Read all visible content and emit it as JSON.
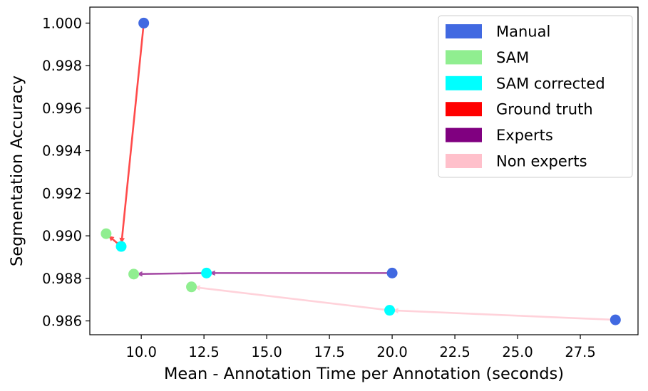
{
  "chart_data": {
    "type": "scatter",
    "xlabel": "Mean - Annotation Time per Annotation (seconds)",
    "ylabel": "Segmentation Accuracy",
    "xlim": [
      7.95,
      29.8
    ],
    "ylim": [
      0.98535,
      1.00075
    ],
    "xticks": [
      {
        "value": 10.0,
        "label": "10.0"
      },
      {
        "value": 12.5,
        "label": "12.5"
      },
      {
        "value": 15.0,
        "label": "15.0"
      },
      {
        "value": 17.5,
        "label": "17.5"
      },
      {
        "value": 20.0,
        "label": "20.0"
      },
      {
        "value": 22.5,
        "label": "22.5"
      },
      {
        "value": 25.0,
        "label": "25.0"
      },
      {
        "value": 27.5,
        "label": "27.5"
      }
    ],
    "yticks": [
      {
        "value": 0.986,
        "label": "0.986"
      },
      {
        "value": 0.988,
        "label": "0.988"
      },
      {
        "value": 0.99,
        "label": "0.990"
      },
      {
        "value": 0.992,
        "label": "0.992"
      },
      {
        "value": 0.994,
        "label": "0.994"
      },
      {
        "value": 0.996,
        "label": "0.996"
      },
      {
        "value": 0.998,
        "label": "0.998"
      },
      {
        "value": 1.0,
        "label": "1.000"
      }
    ],
    "grid": false,
    "legend_position": "top-right",
    "legend": [
      {
        "label": "Manual",
        "color": "#4169e1"
      },
      {
        "label": "SAM",
        "color": "#90ee90"
      },
      {
        "label": "SAM corrected",
        "color": "#00ffff"
      },
      {
        "label": "Ground truth",
        "color": "#ff0000"
      },
      {
        "label": "Experts",
        "color": "#800080"
      },
      {
        "label": "Non experts",
        "color": "#ffc0cb"
      }
    ],
    "points": [
      {
        "group": "Ground truth",
        "kind": "Manual",
        "color": "#4169e1",
        "x": 10.1,
        "y": 1.0
      },
      {
        "group": "Ground truth",
        "kind": "SAM",
        "color": "#90ee90",
        "x": 8.6,
        "y": 0.9901
      },
      {
        "group": "Ground truth",
        "kind": "SAM corrected",
        "color": "#00ffff",
        "x": 9.2,
        "y": 0.9895
      },
      {
        "group": "Experts",
        "kind": "Manual",
        "color": "#4169e1",
        "x": 20.0,
        "y": 0.98825
      },
      {
        "group": "Experts",
        "kind": "SAM",
        "color": "#90ee90",
        "x": 9.7,
        "y": 0.9882
      },
      {
        "group": "Experts",
        "kind": "SAM corrected",
        "color": "#00ffff",
        "x": 12.6,
        "y": 0.98825
      },
      {
        "group": "Non experts",
        "kind": "Manual",
        "color": "#4169e1",
        "x": 28.9,
        "y": 0.98605
      },
      {
        "group": "Non experts",
        "kind": "SAM",
        "color": "#90ee90",
        "x": 12.0,
        "y": 0.9876
      },
      {
        "group": "Non experts",
        "kind": "SAM corrected",
        "color": "#00ffff",
        "x": 19.9,
        "y": 0.9865
      }
    ],
    "arrows": [
      {
        "group": "Ground truth",
        "color": "#ff0000",
        "from": [
          10.1,
          1.0
        ],
        "to": [
          9.2,
          0.9895
        ]
      },
      {
        "group": "Ground truth",
        "color": "#ff0000",
        "from": [
          9.2,
          0.9895
        ],
        "to": [
          8.6,
          0.9901
        ]
      },
      {
        "group": "Experts",
        "color": "#800080",
        "from": [
          20.0,
          0.98825
        ],
        "to": [
          12.6,
          0.98825
        ]
      },
      {
        "group": "Experts",
        "color": "#800080",
        "from": [
          12.6,
          0.98825
        ],
        "to": [
          9.7,
          0.9882
        ]
      },
      {
        "group": "Non experts",
        "color": "#ffc0cb",
        "from": [
          28.9,
          0.98605
        ],
        "to": [
          19.9,
          0.9865
        ]
      },
      {
        "group": "Non experts",
        "color": "#ffc0cb",
        "from": [
          19.9,
          0.9865
        ],
        "to": [
          12.0,
          0.9876
        ]
      }
    ]
  }
}
